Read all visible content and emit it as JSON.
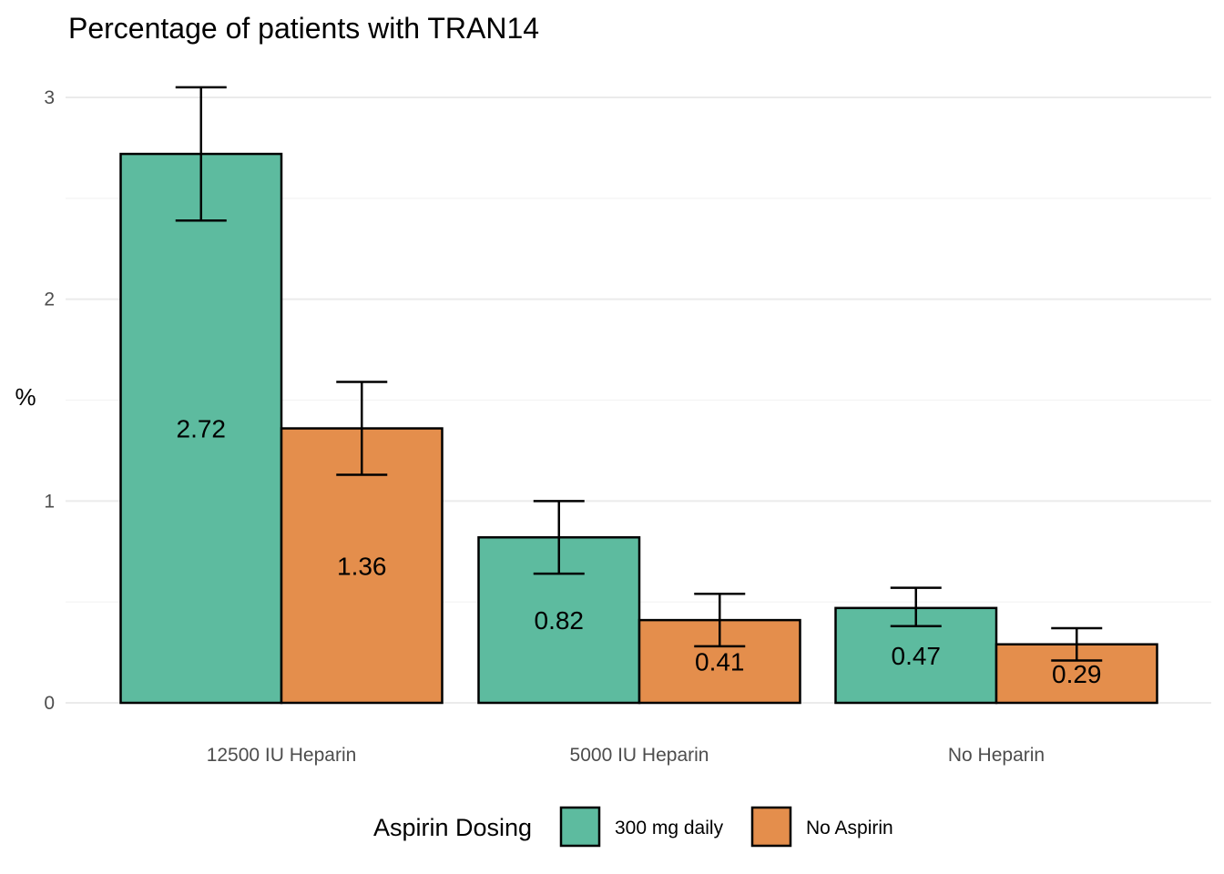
{
  "chart_data": {
    "type": "bar",
    "title": "Percentage of patients with TRAN14",
    "xlabel": "",
    "ylabel": "%",
    "ylim": [
      0,
      3.1
    ],
    "yticks": [
      0,
      1,
      2,
      3
    ],
    "grid": true,
    "legend": {
      "title": "Aspirin Dosing",
      "position": "bottom"
    },
    "categories": [
      "12500 IU Heparin",
      "5000 IU Heparin",
      "No Heparin"
    ],
    "series": [
      {
        "name": "300 mg daily",
        "color": "#5dbb9f",
        "values": [
          2.72,
          0.82,
          0.47
        ],
        "labels": [
          "2.72",
          "0.82",
          "0.47"
        ],
        "error_low": [
          2.39,
          0.64,
          0.38
        ],
        "error_high": [
          3.05,
          1.0,
          0.57
        ]
      },
      {
        "name": "No Aspirin",
        "color": "#e48e4c",
        "values": [
          1.36,
          0.41,
          0.29
        ],
        "labels": [
          "1.36",
          "0.41",
          "0.29"
        ],
        "error_low": [
          1.13,
          0.28,
          0.21
        ],
        "error_high": [
          1.59,
          0.54,
          0.37
        ]
      }
    ]
  }
}
